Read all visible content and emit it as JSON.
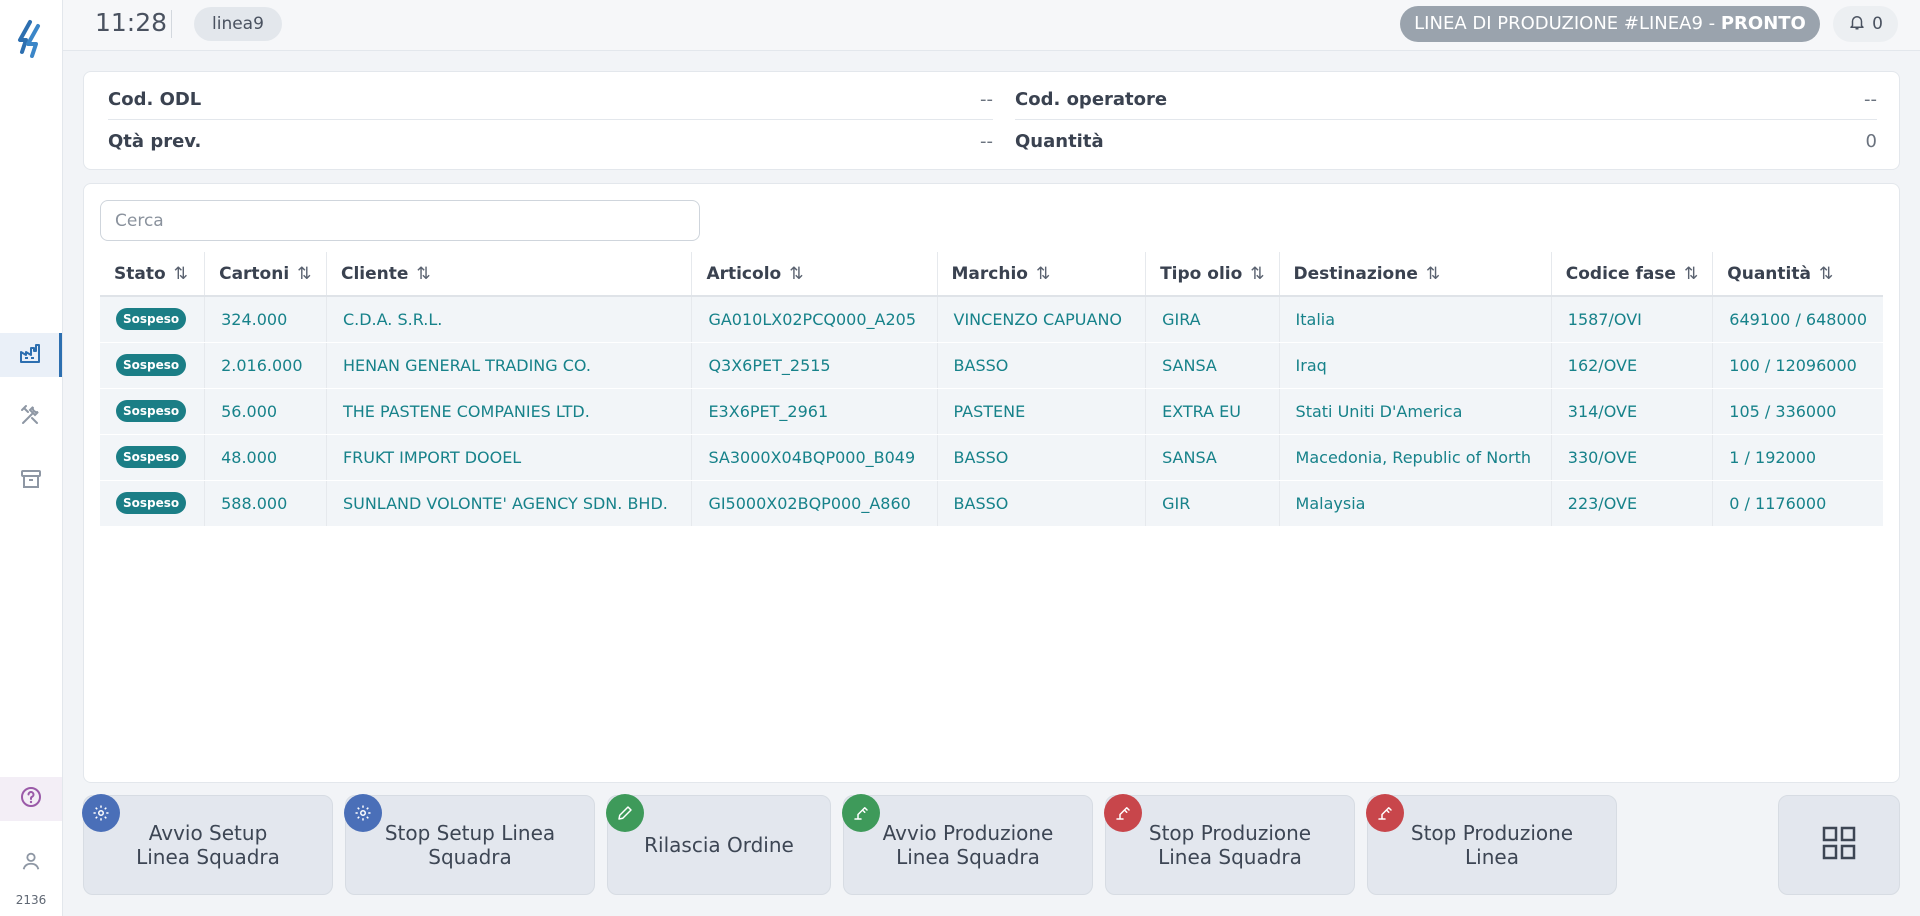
{
  "topbar": {
    "time": "11:28",
    "line_tag": "linea9",
    "status_prefix": "LINEA DI PRODUZIONE #LINEA9 - ",
    "status_value": "PRONTO",
    "notification_count": "0"
  },
  "sidebar": {
    "version": "2136",
    "icons": [
      "factory-icon",
      "tools-icon",
      "archive-icon",
      "help-icon",
      "user-icon"
    ]
  },
  "info": {
    "cod_odl_label": "Cod. ODL",
    "cod_odl_value": "--",
    "cod_operatore_label": "Cod. operatore",
    "cod_operatore_value": "--",
    "qta_prev_label": "Qtà prev.",
    "qta_prev_value": "--",
    "quantita_label": "Quantità",
    "quantita_value": "0"
  },
  "search": {
    "placeholder": "Cerca"
  },
  "table": {
    "columns": [
      "Stato",
      "Cartoni",
      "Cliente",
      "Articolo",
      "Marchio",
      "Tipo olio",
      "Destinazione",
      "Codice fase",
      "Quantità"
    ],
    "rows": [
      {
        "stato": "Sospeso",
        "cartoni": "324.000",
        "cliente": "C.D.A. S.R.L.",
        "articolo": "GA010LX02PCQ000_A205",
        "marchio": "VINCENZO CAPUANO",
        "tipo_olio": "GIRA",
        "destinazione": "Italia",
        "codice_fase": "1587/OVI",
        "quantita": "649100 / 648000"
      },
      {
        "stato": "Sospeso",
        "cartoni": "2.016.000",
        "cliente": "HENAN GENERAL TRADING CO.",
        "articolo": "Q3X6PET_2515",
        "marchio": "BASSO",
        "tipo_olio": "SANSA",
        "destinazione": "Iraq",
        "codice_fase": "162/OVE",
        "quantita": "100 / 12096000"
      },
      {
        "stato": "Sospeso",
        "cartoni": "56.000",
        "cliente": "THE PASTENE COMPANIES LTD.",
        "articolo": "E3X6PET_2961",
        "marchio": "PASTENE",
        "tipo_olio": "EXTRA EU",
        "destinazione": "Stati Uniti D'America",
        "codice_fase": "314/OVE",
        "quantita": "105 / 336000"
      },
      {
        "stato": "Sospeso",
        "cartoni": "48.000",
        "cliente": "FRUKT IMPORT DOOEL",
        "articolo": "SA3000X04BQP000_B049",
        "marchio": "BASSO",
        "tipo_olio": "SANSA",
        "destinazione": "Macedonia, Republic of North",
        "codice_fase": "330/OVE",
        "quantita": "1 / 192000"
      },
      {
        "stato": "Sospeso",
        "cartoni": "588.000",
        "cliente": "SUNLAND VOLONTE' AGENCY SDN. BHD.",
        "articolo": "GI5000X02BQP000_A860",
        "marchio": "BASSO",
        "tipo_olio": "GIR",
        "destinazione": "Malaysia",
        "codice_fase": "223/OVE",
        "quantita": "0 / 1176000"
      }
    ]
  },
  "actions": [
    {
      "line1": "Avvio Setup",
      "line2": "Linea Squadra",
      "icon": "gear-icon",
      "color": "#4a6fb8"
    },
    {
      "line1": "Stop Setup Linea",
      "line2": "Squadra",
      "icon": "gear-icon",
      "color": "#4a6fb8"
    },
    {
      "line1": "Rilascia Ordine",
      "line2": "",
      "icon": "pencil-icon",
      "color": "#3e9a5a"
    },
    {
      "line1": "Avvio Produzione",
      "line2": "Linea Squadra",
      "icon": "robot-arm-icon",
      "color": "#3e9a5a"
    },
    {
      "line1": "Stop Produzione",
      "line2": "Linea Squadra",
      "icon": "robot-arm-icon",
      "color": "#c8464b"
    },
    {
      "line1": "Stop Produzione",
      "line2": "Linea",
      "icon": "robot-arm-icon",
      "color": "#c8464b"
    }
  ]
}
